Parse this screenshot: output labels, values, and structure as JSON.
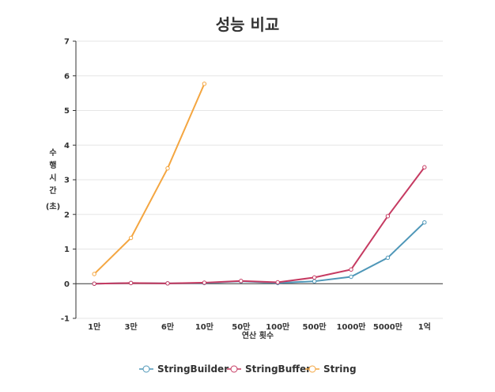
{
  "chart_data": {
    "type": "line",
    "title": "성능 비교",
    "xlabel": "연산 횟수",
    "ylabel": [
      "수",
      "행",
      "시",
      "간",
      "(초)"
    ],
    "categories": [
      "1만",
      "3만",
      "6만",
      "10만",
      "50만",
      "100만",
      "500만",
      "1000만",
      "5000만",
      "1억"
    ],
    "ylim": [
      -1,
      7
    ],
    "yticks": [
      -1,
      0,
      1,
      2,
      3,
      4,
      5,
      6,
      7
    ],
    "grid": "horizontal",
    "legend_position": "bottom",
    "series": [
      {
        "name": "StringBuilder",
        "color": "#4f97b8",
        "values": [
          0,
          0.02,
          0.01,
          0.02,
          0.07,
          0.02,
          0.07,
          0.2,
          0.75,
          1.77
        ]
      },
      {
        "name": "StringBuffer",
        "color": "#c63b62",
        "values": [
          0,
          0.02,
          0.01,
          0.03,
          0.08,
          0.04,
          0.18,
          0.41,
          1.95,
          3.36
        ]
      },
      {
        "name": "String",
        "color": "#f4a641",
        "values": [
          0.28,
          1.32,
          3.33,
          5.77,
          null,
          null,
          null,
          null,
          null,
          null
        ]
      }
    ]
  }
}
